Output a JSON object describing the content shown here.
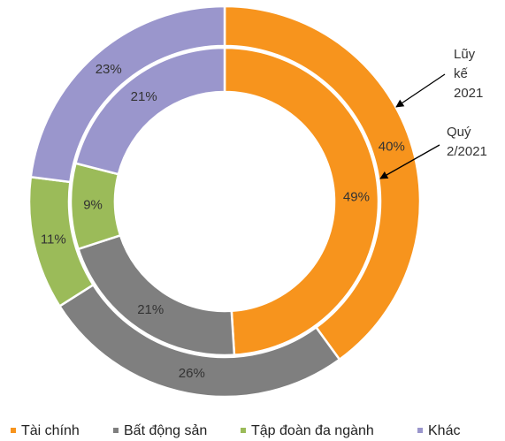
{
  "chart_data": {
    "type": "donut",
    "categories": [
      "Tài chính",
      "Bất động sản",
      "Tập đoàn đa ngành",
      "Khác"
    ],
    "colors": [
      "#f7941d",
      "#7f7f7f",
      "#9bbb59",
      "#9a96cc"
    ],
    "series": [
      {
        "name": "Lũy kế 2021",
        "values": [
          40,
          26,
          11,
          23
        ],
        "value_labels": [
          "40%",
          "26%",
          "11%",
          "23%"
        ]
      },
      {
        "name": "Quý 2/2021",
        "values": [
          49,
          21,
          9,
          21
        ],
        "value_labels": [
          "49%",
          "21%",
          "9%",
          "21%"
        ]
      }
    ]
  }
}
